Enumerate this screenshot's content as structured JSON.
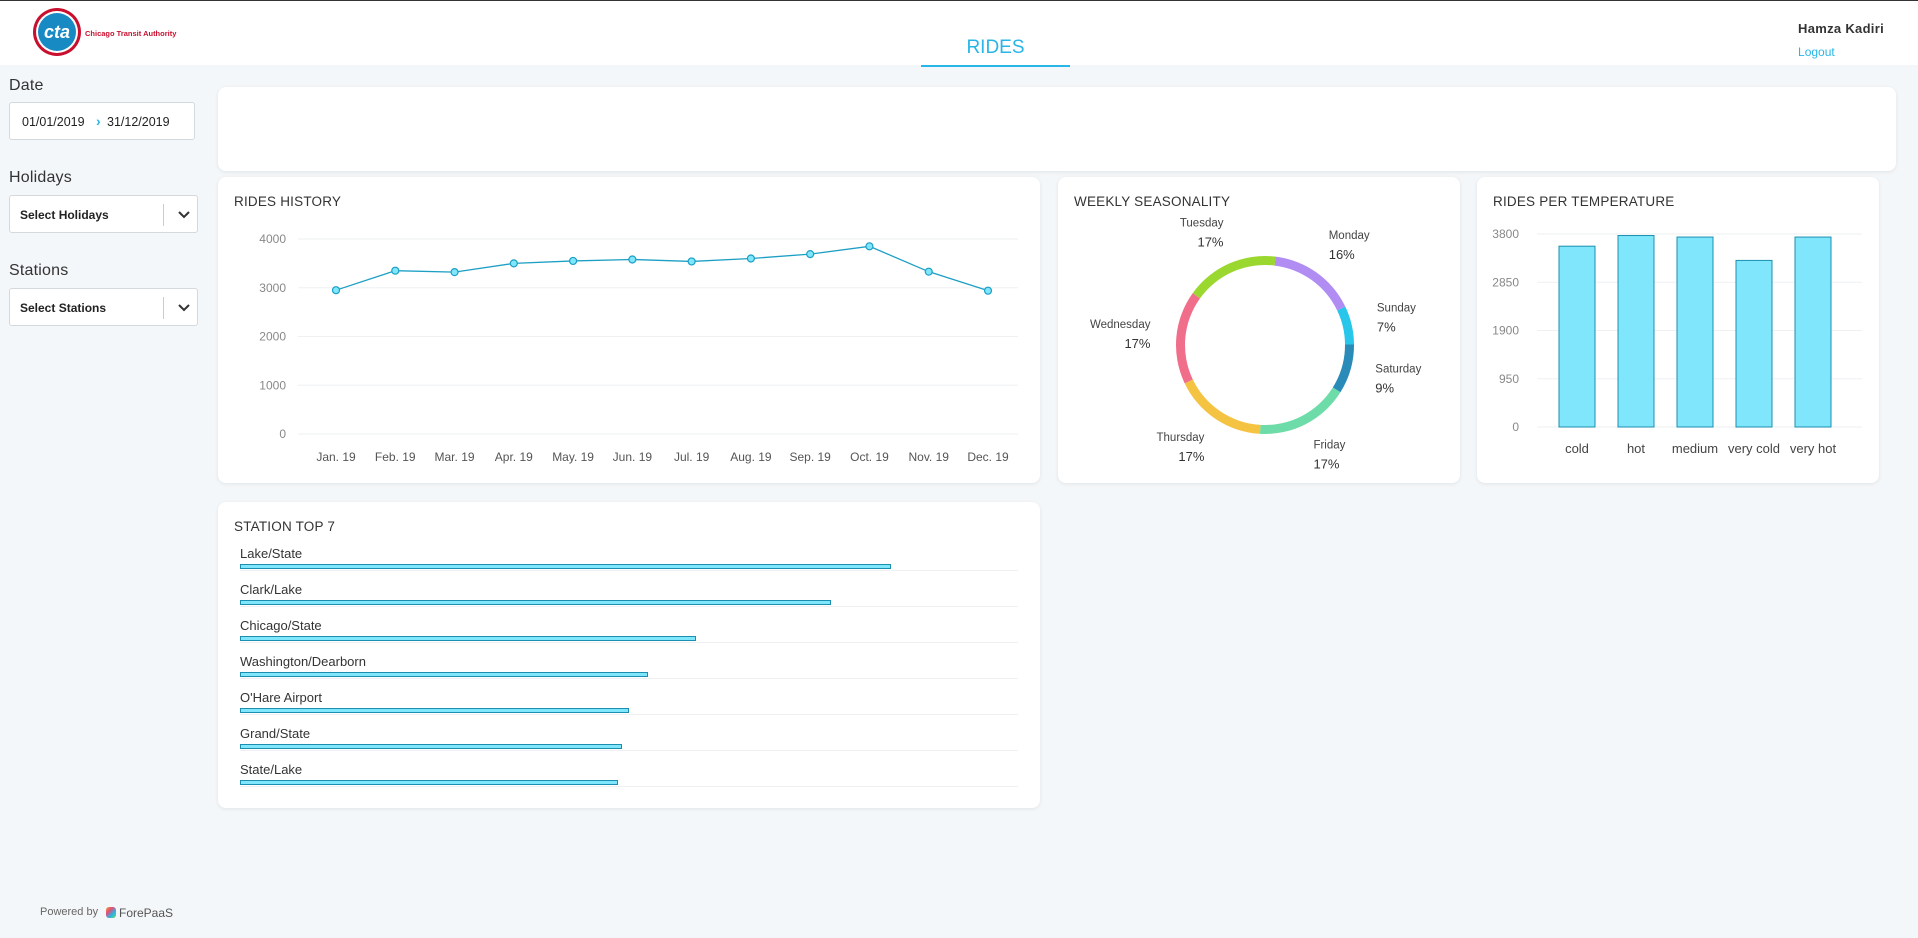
{
  "header": {
    "logo_text": "cta",
    "logo_subtitle": "Chicago Transit Authority",
    "tab_label": "RIDES",
    "user_name": "Hamza Kadiri",
    "logout_label": "Logout"
  },
  "sidebar": {
    "date_label": "Date",
    "date_start": "01/01/2019",
    "date_end": "31/12/2019",
    "holidays_label": "Holidays",
    "holidays_placeholder": "Select Holidays",
    "stations_label": "Stations",
    "stations_placeholder": "Select Stations"
  },
  "cards": {
    "rides_history_title": "RIDES HISTORY",
    "weekly_title": "WEEKLY SEASONALITY",
    "temperature_title": "RIDES PER TEMPERATURE",
    "station_title": "STATION TOP 7"
  },
  "footer": {
    "powered_by": "Powered by",
    "brand": "ForePaaS"
  },
  "colors": {
    "accent": "#29b6e6",
    "bar_fill": "#7fe6fb",
    "bar_stroke": "#1c8fb0",
    "line": "#1c9fc4"
  },
  "chart_data": [
    {
      "type": "line",
      "title": "RIDES HISTORY",
      "categories": [
        "Jan. 19",
        "Feb. 19",
        "Mar. 19",
        "Apr. 19",
        "May. 19",
        "Jun. 19",
        "Jul. 19",
        "Aug. 19",
        "Sep. 19",
        "Oct. 19",
        "Nov. 19",
        "Dec. 19"
      ],
      "values": [
        2950,
        3350,
        3320,
        3500,
        3550,
        3580,
        3540,
        3600,
        3690,
        3850,
        3330,
        2940
      ],
      "yticks": [
        0,
        1000,
        2000,
        3000,
        4000
      ],
      "ylim": [
        0,
        4000
      ],
      "grid": true
    },
    {
      "type": "pie",
      "title": "WEEKLY SEASONALITY",
      "slices": [
        {
          "label": "Monday",
          "value": 16,
          "text": "16%",
          "color": "#b18cf2"
        },
        {
          "label": "Sunday",
          "value": 7,
          "text": "7%",
          "color": "#29c6ec"
        },
        {
          "label": "Saturday",
          "value": 9,
          "text": "9%",
          "color": "#2a8bb8"
        },
        {
          "label": "Friday",
          "value": 17,
          "text": "17%",
          "color": "#6ddca8"
        },
        {
          "label": "Thursday",
          "value": 17,
          "text": "17%",
          "color": "#f5c342"
        },
        {
          "label": "Wednesday",
          "value": 17,
          "text": "17%",
          "color": "#f06e8a"
        },
        {
          "label": "Tuesday",
          "value": 17,
          "text": "17%",
          "color": "#9ad82f"
        }
      ]
    },
    {
      "type": "bar",
      "title": "RIDES PER TEMPERATURE",
      "categories": [
        "cold",
        "hot",
        "medium",
        "very cold",
        "very hot"
      ],
      "values": [
        3560,
        3770,
        3740,
        3280,
        3740
      ],
      "yticks": [
        0,
        950,
        1900,
        2850,
        3800
      ],
      "ylim": [
        0,
        3800
      ],
      "grid": true
    },
    {
      "type": "bar",
      "title": "STATION TOP 7",
      "categories": [
        "Lake/State",
        "Clark/Lake",
        "Chicago/State",
        "Washington/Dearborn",
        "O'Hare Airport",
        "Grand/State",
        "State/Lake"
      ],
      "values": [
        87,
        79,
        61,
        54.5,
        52,
        51,
        50.5
      ],
      "xlim": [
        0,
        104
      ]
    }
  ]
}
